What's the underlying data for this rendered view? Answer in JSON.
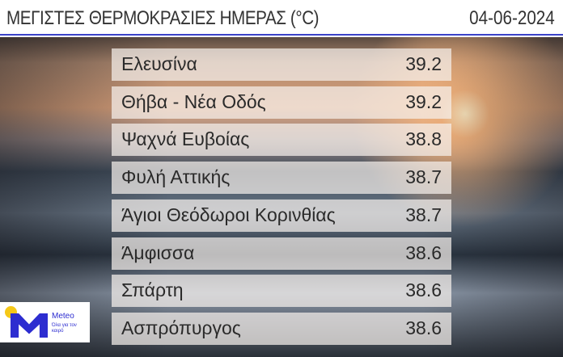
{
  "header": {
    "title": "ΜΕΓΙΣΤΕΣ ΘΕΡΜΟΚΡΑΣΙΕΣ ΗΜΕΡΑΣ (°C)",
    "date": "04-06-2024",
    "accent": "#3b43c8"
  },
  "rows": [
    {
      "name": "Ελευσίνα",
      "value": "39.2"
    },
    {
      "name": "Θήβα - Νέα Οδός",
      "value": "39.2"
    },
    {
      "name": "Ψαχνά Ευβοίας",
      "value": "38.8"
    },
    {
      "name": "Φυλή Αττικής",
      "value": "38.7"
    },
    {
      "name": "Άγιοι Θεόδωροι Κορινθίας",
      "value": "38.7"
    },
    {
      "name": "Άμφισσα",
      "value": "38.6"
    },
    {
      "name": "Σπάρτη",
      "value": "38.6"
    },
    {
      "name": "Ασπρόπυργος",
      "value": "38.6"
    }
  ],
  "logo": {
    "brand": "Meteo",
    "tagline": "Όλα για τον καιρό"
  }
}
